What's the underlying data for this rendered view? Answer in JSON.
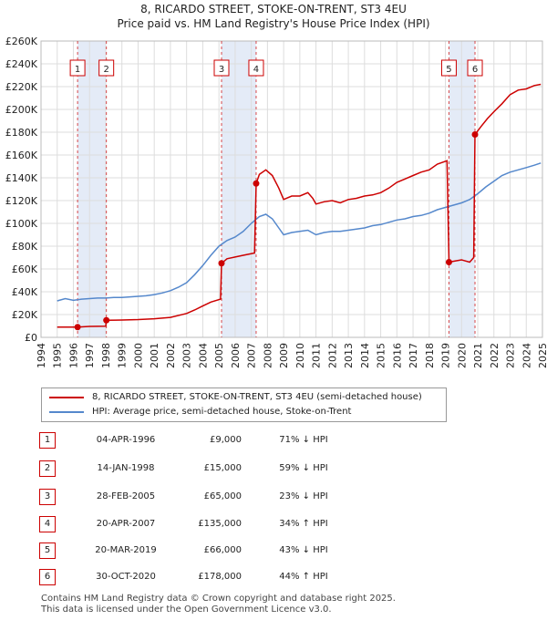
{
  "title": "8, RICARDO STREET, STOKE-ON-TRENT, ST3 4EU",
  "subtitle": "Price paid vs. HM Land Registry's House Price Index (HPI)",
  "legend": {
    "property_label": "8, RICARDO STREET, STOKE-ON-TRENT, ST3 4EU (semi-detached house)",
    "hpi_label": "HPI: Average price, semi-detached house, Stoke-on-Trent"
  },
  "colors": {
    "property": "#cc0000",
    "hpi": "#5588cc",
    "shade": "#dde6f5",
    "grid": "#dddddd"
  },
  "transactions": [
    {
      "num": "1",
      "date": "04-APR-1996",
      "price": "£9,000",
      "hpi": "71% ↓ HPI",
      "x": 1996.26,
      "value": 9000
    },
    {
      "num": "2",
      "date": "14-JAN-1998",
      "price": "£15,000",
      "hpi": "59% ↓ HPI",
      "x": 1998.04,
      "value": 15000
    },
    {
      "num": "3",
      "date": "28-FEB-2005",
      "price": "£65,000",
      "hpi": "23% ↓ HPI",
      "x": 2005.16,
      "value": 65000
    },
    {
      "num": "4",
      "date": "20-APR-2007",
      "price": "£135,000",
      "hpi": "34% ↑ HPI",
      "x": 2007.3,
      "value": 135000
    },
    {
      "num": "5",
      "date": "20-MAR-2019",
      "price": "£66,000",
      "hpi": "43% ↓ HPI",
      "x": 2019.22,
      "value": 66000
    },
    {
      "num": "6",
      "date": "30-OCT-2020",
      "price": "£178,000",
      "hpi": "44% ↑ HPI",
      "x": 2020.83,
      "value": 178000
    }
  ],
  "footer": {
    "line1": "Contains HM Land Registry data © Crown copyright and database right 2025.",
    "line2": "This data is licensed under the Open Government Licence v3.0."
  },
  "chart_data": {
    "type": "line",
    "title": "8, RICARDO STREET, STOKE-ON-TRENT, ST3 4EU",
    "subtitle": "Price paid vs. HM Land Registry's House Price Index (HPI)",
    "xlim": [
      1994,
      2025
    ],
    "ylim": [
      0,
      260000
    ],
    "x_ticks": [
      1994,
      1995,
      1996,
      1997,
      1998,
      1999,
      2000,
      2001,
      2002,
      2003,
      2004,
      2005,
      2006,
      2007,
      2008,
      2009,
      2010,
      2011,
      2012,
      2013,
      2014,
      2015,
      2016,
      2017,
      2018,
      2019,
      2020,
      2021,
      2022,
      2023,
      2024,
      2025
    ],
    "y_ticks": [
      {
        "v": 0,
        "label": "£0"
      },
      {
        "v": 20000,
        "label": "£20K"
      },
      {
        "v": 40000,
        "label": "£40K"
      },
      {
        "v": 60000,
        "label": "£60K"
      },
      {
        "v": 80000,
        "label": "£80K"
      },
      {
        "v": 100000,
        "label": "£100K"
      },
      {
        "v": 120000,
        "label": "£120K"
      },
      {
        "v": 140000,
        "label": "£140K"
      },
      {
        "v": 160000,
        "label": "£160K"
      },
      {
        "v": 180000,
        "label": "£180K"
      },
      {
        "v": 200000,
        "label": "£200K"
      },
      {
        "v": 220000,
        "label": "£220K"
      },
      {
        "v": 240000,
        "label": "£240K"
      },
      {
        "v": 260000,
        "label": "£260K"
      }
    ],
    "shaded_ranges": [
      [
        1996.26,
        1998.04
      ],
      [
        2005.16,
        2007.3
      ],
      [
        2019.22,
        2020.83
      ]
    ],
    "legend_position": "below",
    "series": [
      {
        "name": "8, RICARDO STREET, STOKE-ON-TRENT, ST3 4EU (semi-detached house)",
        "color": "#cc0000",
        "points": [
          [
            1995.0,
            9000
          ],
          [
            1996.0,
            9000
          ],
          [
            1996.26,
            9000
          ],
          [
            1997.0,
            9600
          ],
          [
            1998.0,
            9800
          ],
          [
            1998.04,
            15000
          ],
          [
            1999.0,
            15200
          ],
          [
            2000.0,
            15600
          ],
          [
            2001.0,
            16300
          ],
          [
            2002.0,
            17500
          ],
          [
            2003.0,
            21000
          ],
          [
            2003.5,
            24000
          ],
          [
            2004.0,
            27500
          ],
          [
            2004.5,
            31000
          ],
          [
            2005.1,
            33500
          ],
          [
            2005.16,
            65000
          ],
          [
            2005.5,
            69000
          ],
          [
            2006.0,
            70500
          ],
          [
            2006.5,
            72000
          ],
          [
            2007.2,
            74000
          ],
          [
            2007.3,
            135000
          ],
          [
            2007.5,
            143000
          ],
          [
            2007.9,
            147000
          ],
          [
            2008.3,
            142000
          ],
          [
            2008.7,
            131000
          ],
          [
            2009.0,
            121000
          ],
          [
            2009.5,
            124000
          ],
          [
            2010.0,
            124000
          ],
          [
            2010.5,
            127000
          ],
          [
            2010.8,
            122000
          ],
          [
            2011.0,
            117000
          ],
          [
            2011.5,
            119000
          ],
          [
            2012.0,
            120000
          ],
          [
            2012.5,
            118000
          ],
          [
            2013.0,
            121000
          ],
          [
            2013.5,
            122000
          ],
          [
            2014.0,
            124000
          ],
          [
            2014.5,
            125000
          ],
          [
            2015.0,
            127000
          ],
          [
            2015.5,
            131000
          ],
          [
            2016.0,
            136000
          ],
          [
            2016.5,
            139000
          ],
          [
            2017.0,
            142000
          ],
          [
            2017.5,
            145000
          ],
          [
            2018.0,
            147000
          ],
          [
            2018.5,
            152000
          ],
          [
            2019.1,
            155000
          ],
          [
            2019.22,
            66000
          ],
          [
            2019.6,
            67000
          ],
          [
            2020.0,
            68000
          ],
          [
            2020.5,
            66000
          ],
          [
            2020.75,
            70000
          ],
          [
            2020.83,
            178000
          ],
          [
            2021.2,
            185000
          ],
          [
            2021.6,
            192000
          ],
          [
            2022.0,
            198000
          ],
          [
            2022.5,
            205000
          ],
          [
            2023.0,
            213000
          ],
          [
            2023.5,
            217000
          ],
          [
            2024.0,
            218000
          ],
          [
            2024.5,
            221000
          ],
          [
            2024.9,
            222000
          ]
        ]
      },
      {
        "name": "HPI: Average price, semi-detached house, Stoke-on-Trent",
        "color": "#5588cc",
        "points": [
          [
            1995.0,
            32000
          ],
          [
            1995.5,
            34000
          ],
          [
            1996.0,
            32500
          ],
          [
            1996.5,
            33500
          ],
          [
            1997.0,
            34000
          ],
          [
            1997.5,
            34500
          ],
          [
            1998.0,
            34500
          ],
          [
            1998.5,
            35000
          ],
          [
            1999.0,
            35000
          ],
          [
            1999.5,
            35500
          ],
          [
            2000.0,
            36000
          ],
          [
            2000.5,
            36500
          ],
          [
            2001.0,
            37500
          ],
          [
            2001.5,
            39000
          ],
          [
            2002.0,
            41000
          ],
          [
            2002.5,
            44000
          ],
          [
            2003.0,
            48000
          ],
          [
            2003.5,
            55000
          ],
          [
            2004.0,
            63000
          ],
          [
            2004.5,
            72000
          ],
          [
            2005.0,
            80000
          ],
          [
            2005.5,
            85000
          ],
          [
            2006.0,
            88000
          ],
          [
            2006.5,
            93000
          ],
          [
            2007.0,
            100000
          ],
          [
            2007.5,
            106000
          ],
          [
            2007.9,
            108000
          ],
          [
            2008.3,
            104000
          ],
          [
            2008.7,
            96000
          ],
          [
            2009.0,
            90000
          ],
          [
            2009.5,
            92000
          ],
          [
            2010.0,
            93000
          ],
          [
            2010.5,
            94000
          ],
          [
            2011.0,
            90000
          ],
          [
            2011.5,
            92000
          ],
          [
            2012.0,
            93000
          ],
          [
            2012.5,
            93000
          ],
          [
            2013.0,
            94000
          ],
          [
            2013.5,
            95000
          ],
          [
            2014.0,
            96000
          ],
          [
            2014.5,
            98000
          ],
          [
            2015.0,
            99000
          ],
          [
            2015.5,
            101000
          ],
          [
            2016.0,
            103000
          ],
          [
            2016.5,
            104000
          ],
          [
            2017.0,
            106000
          ],
          [
            2017.5,
            107000
          ],
          [
            2018.0,
            109000
          ],
          [
            2018.5,
            112000
          ],
          [
            2019.0,
            114000
          ],
          [
            2019.5,
            116000
          ],
          [
            2020.0,
            118000
          ],
          [
            2020.5,
            121000
          ],
          [
            2021.0,
            126000
          ],
          [
            2021.5,
            132000
          ],
          [
            2022.0,
            137000
          ],
          [
            2022.5,
            142000
          ],
          [
            2023.0,
            145000
          ],
          [
            2023.5,
            147000
          ],
          [
            2024.0,
            149000
          ],
          [
            2024.5,
            151000
          ],
          [
            2024.9,
            153000
          ]
        ]
      }
    ]
  }
}
